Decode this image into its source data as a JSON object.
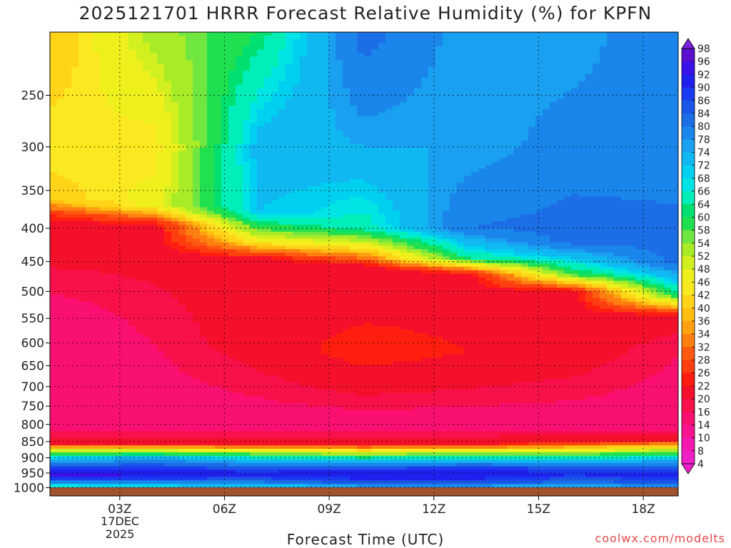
{
  "title": "2025121701 HRRR Forecast Relative Humidity (%) for KPFN",
  "xlabel": "Forecast Time (UTC)",
  "credit": "coolwx.com/modelts",
  "date_label": {
    "line1": "17DEC",
    "line2": "2025"
  },
  "chart_data": {
    "type": "heatmap",
    "title": "2025121701 HRRR Forecast Relative Humidity (%) for KPFN",
    "xlabel": "Forecast Time (UTC)",
    "ylabel": "",
    "x_ticks": [
      "03Z",
      "06Z",
      "09Z",
      "12Z",
      "15Z",
      "18Z"
    ],
    "x_range_hours": [
      1,
      19
    ],
    "y_scale": "log-pressure",
    "y_ticks": [
      250,
      300,
      350,
      400,
      450,
      500,
      550,
      600,
      650,
      700,
      750,
      800,
      850,
      900,
      950,
      1000
    ],
    "y_range_hpa": [
      200,
      1030
    ],
    "grid": true,
    "colorbar_levels": [
      98,
      96,
      92,
      90,
      86,
      84,
      80,
      78,
      74,
      72,
      68,
      66,
      64,
      60,
      58,
      54,
      52,
      48,
      46,
      42,
      40,
      36,
      34,
      32,
      28,
      26,
      22,
      20,
      16,
      14,
      10,
      8,
      4
    ],
    "colorbar_colors": [
      "#7a22d9",
      "#5b10cf",
      "#3c10e8",
      "#2020ee",
      "#1a3cf0",
      "#1a56e8",
      "#1c6ee6",
      "#1a86ec",
      "#1aa0f0",
      "#10b8f2",
      "#00d0f0",
      "#00e4e6",
      "#00eeb8",
      "#00e070",
      "#20e050",
      "#70e640",
      "#a8ec28",
      "#d2f020",
      "#eef01c",
      "#fae820",
      "#ffd418",
      "#ffbe10",
      "#ffa010",
      "#ff8010",
      "#ff5a10",
      "#ff3e10",
      "#ff1e10",
      "#f4102a",
      "#f8104a",
      "#fa1070",
      "#f81490",
      "#f418b0",
      "#f020c8"
    ],
    "profiles": [
      {
        "time_hour": 1,
        "rh": [
          {
            "p": 200,
            "v": 36
          },
          {
            "p": 300,
            "v": 42
          },
          {
            "p": 360,
            "v": 38
          },
          {
            "p": 385,
            "v": 20
          },
          {
            "p": 550,
            "v": 12
          },
          {
            "p": 800,
            "v": 12
          },
          {
            "p": 855,
            "v": 18
          },
          {
            "p": 880,
            "v": 50
          },
          {
            "p": 900,
            "v": 66
          },
          {
            "p": 930,
            "v": 84
          },
          {
            "p": 960,
            "v": 92
          },
          {
            "p": 985,
            "v": 72
          },
          {
            "p": 1005,
            "v": 56
          }
        ]
      },
      {
        "time_hour": 4,
        "rh": [
          {
            "p": 200,
            "v": 50
          },
          {
            "p": 300,
            "v": 40
          },
          {
            "p": 370,
            "v": 44
          },
          {
            "p": 395,
            "v": 18
          },
          {
            "p": 600,
            "v": 14
          },
          {
            "p": 800,
            "v": 12
          },
          {
            "p": 855,
            "v": 18
          },
          {
            "p": 880,
            "v": 50
          },
          {
            "p": 900,
            "v": 70
          },
          {
            "p": 930,
            "v": 84
          },
          {
            "p": 960,
            "v": 90
          },
          {
            "p": 985,
            "v": 74
          },
          {
            "p": 1005,
            "v": 58
          }
        ]
      },
      {
        "time_hour": 7,
        "rh": [
          {
            "p": 200,
            "v": 58
          },
          {
            "p": 300,
            "v": 70
          },
          {
            "p": 380,
            "v": 68
          },
          {
            "p": 420,
            "v": 42
          },
          {
            "p": 445,
            "v": 18
          },
          {
            "p": 600,
            "v": 18
          },
          {
            "p": 800,
            "v": 12
          },
          {
            "p": 855,
            "v": 18
          },
          {
            "p": 882,
            "v": 48
          },
          {
            "p": 905,
            "v": 68
          },
          {
            "p": 935,
            "v": 84
          },
          {
            "p": 960,
            "v": 88
          },
          {
            "p": 985,
            "v": 76
          },
          {
            "p": 1005,
            "v": 62
          }
        ]
      },
      {
        "time_hour": 10,
        "rh": [
          {
            "p": 200,
            "v": 80
          },
          {
            "p": 300,
            "v": 72
          },
          {
            "p": 400,
            "v": 62
          },
          {
            "p": 435,
            "v": 36
          },
          {
            "p": 460,
            "v": 16
          },
          {
            "p": 620,
            "v": 22
          },
          {
            "p": 800,
            "v": 12
          },
          {
            "p": 858,
            "v": 18
          },
          {
            "p": 885,
            "v": 48
          },
          {
            "p": 910,
            "v": 68
          },
          {
            "p": 938,
            "v": 86
          },
          {
            "p": 960,
            "v": 90
          },
          {
            "p": 985,
            "v": 80
          },
          {
            "p": 1005,
            "v": 66
          }
        ]
      },
      {
        "time_hour": 13,
        "rh": [
          {
            "p": 200,
            "v": 72
          },
          {
            "p": 300,
            "v": 72
          },
          {
            "p": 400,
            "v": 78
          },
          {
            "p": 445,
            "v": 60
          },
          {
            "p": 470,
            "v": 18
          },
          {
            "p": 620,
            "v": 20
          },
          {
            "p": 800,
            "v": 12
          },
          {
            "p": 856,
            "v": 18
          },
          {
            "p": 882,
            "v": 48
          },
          {
            "p": 905,
            "v": 68
          },
          {
            "p": 935,
            "v": 86
          },
          {
            "p": 960,
            "v": 90
          },
          {
            "p": 985,
            "v": 80
          },
          {
            "p": 1005,
            "v": 66
          }
        ]
      },
      {
        "time_hour": 16,
        "rh": [
          {
            "p": 200,
            "v": 72
          },
          {
            "p": 300,
            "v": 76
          },
          {
            "p": 420,
            "v": 80
          },
          {
            "p": 470,
            "v": 56
          },
          {
            "p": 500,
            "v": 18
          },
          {
            "p": 620,
            "v": 18
          },
          {
            "p": 800,
            "v": 12
          },
          {
            "p": 848,
            "v": 18
          },
          {
            "p": 885,
            "v": 50
          },
          {
            "p": 910,
            "v": 70
          },
          {
            "p": 935,
            "v": 84
          },
          {
            "p": 960,
            "v": 86
          },
          {
            "p": 985,
            "v": 78
          },
          {
            "p": 1005,
            "v": 66
          }
        ]
      },
      {
        "time_hour": 19,
        "rh": [
          {
            "p": 200,
            "v": 78
          },
          {
            "p": 300,
            "v": 76
          },
          {
            "p": 450,
            "v": 80
          },
          {
            "p": 505,
            "v": 60
          },
          {
            "p": 545,
            "v": 18
          },
          {
            "p": 620,
            "v": 14
          },
          {
            "p": 800,
            "v": 12
          },
          {
            "p": 845,
            "v": 18
          },
          {
            "p": 880,
            "v": 52
          },
          {
            "p": 905,
            "v": 70
          },
          {
            "p": 935,
            "v": 84
          },
          {
            "p": 960,
            "v": 88
          },
          {
            "p": 985,
            "v": 80
          },
          {
            "p": 1005,
            "v": 68
          }
        ]
      }
    ],
    "ground_color": "#a0522d"
  }
}
